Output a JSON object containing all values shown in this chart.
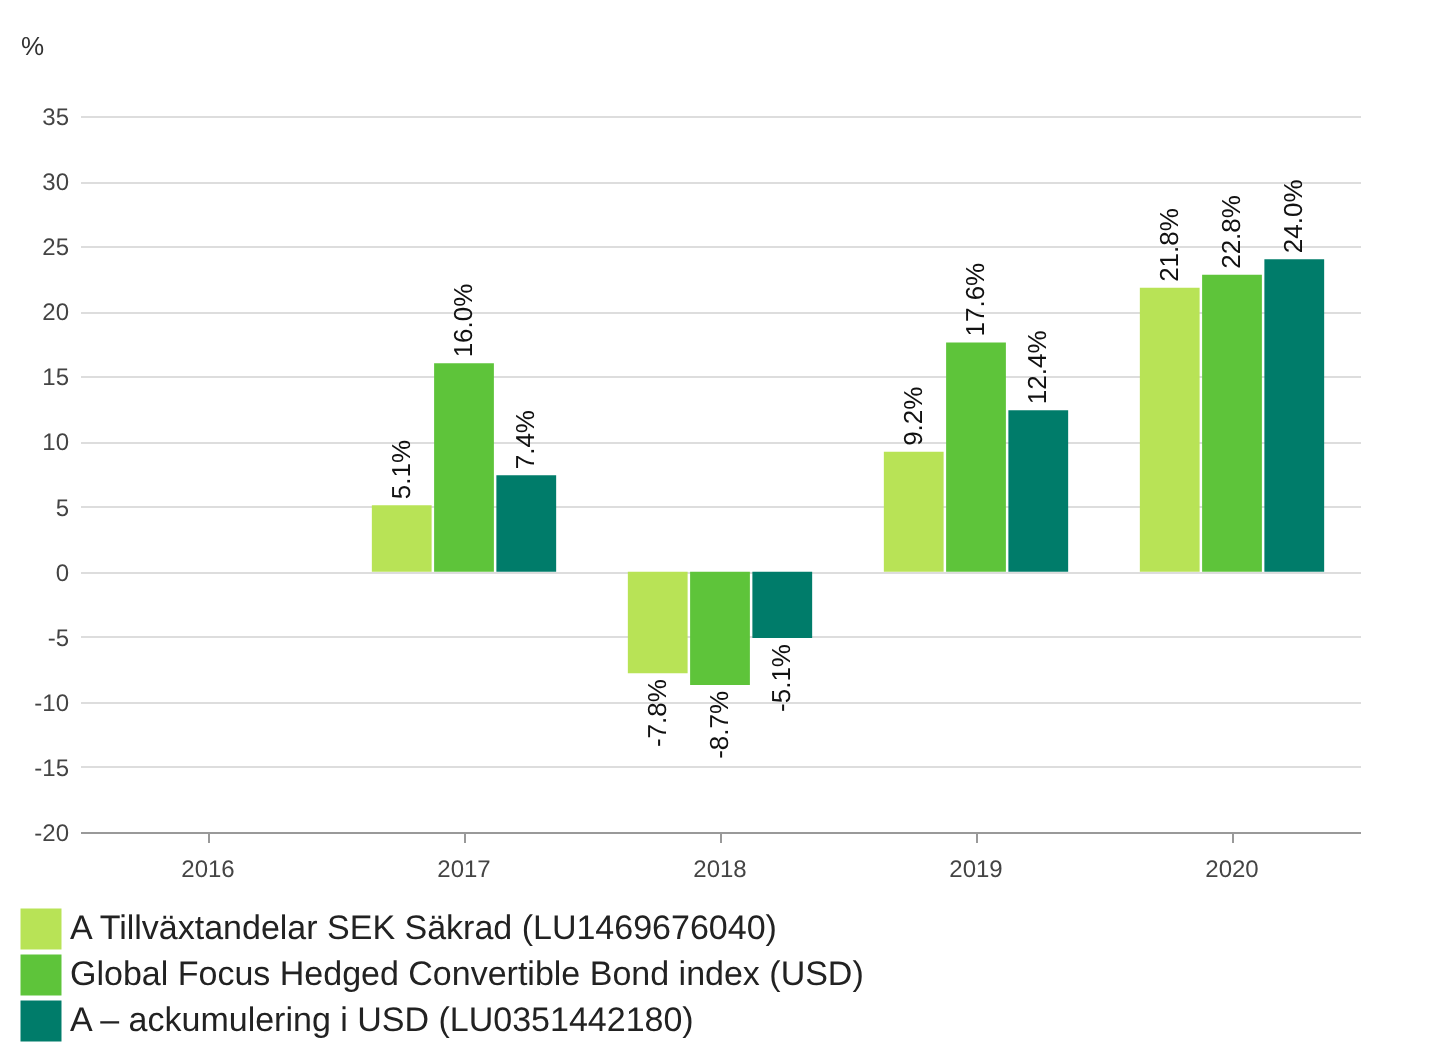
{
  "chart_data": {
    "type": "bar",
    "ylabel": "%",
    "categories": [
      "2016",
      "2017",
      "2018",
      "2019",
      "2020"
    ],
    "series": [
      {
        "name": "A Tillväxtandelar SEK Säkrad (LU1469676040)",
        "color": "#b8e356",
        "values": [
          null,
          5.1,
          -7.8,
          9.2,
          21.8
        ],
        "value_labels": [
          null,
          "5.1%",
          "-7.8%",
          "9.2%",
          "21.8%"
        ]
      },
      {
        "name": "Global Focus Hedged Convertible Bond index (USD)",
        "color": "#5ec43a",
        "values": [
          null,
          16.0,
          -8.7,
          17.6,
          22.8
        ],
        "value_labels": [
          null,
          "16.0%",
          "-8.7%",
          "17.6%",
          "22.8%"
        ]
      },
      {
        "name": "A – ackumulering i USD (LU0351442180)",
        "color": "#007c6a",
        "values": [
          null,
          7.4,
          -5.1,
          12.4,
          24.0
        ],
        "value_labels": [
          null,
          "7.4%",
          "-5.1%",
          "12.4%",
          "24.0%"
        ]
      }
    ],
    "ylim": [
      -20,
      35
    ],
    "yticks": [
      -20,
      -15,
      -10,
      -5,
      0,
      5,
      10,
      15,
      20,
      25,
      30,
      35
    ],
    "grid": "y",
    "legend": "bottom"
  }
}
